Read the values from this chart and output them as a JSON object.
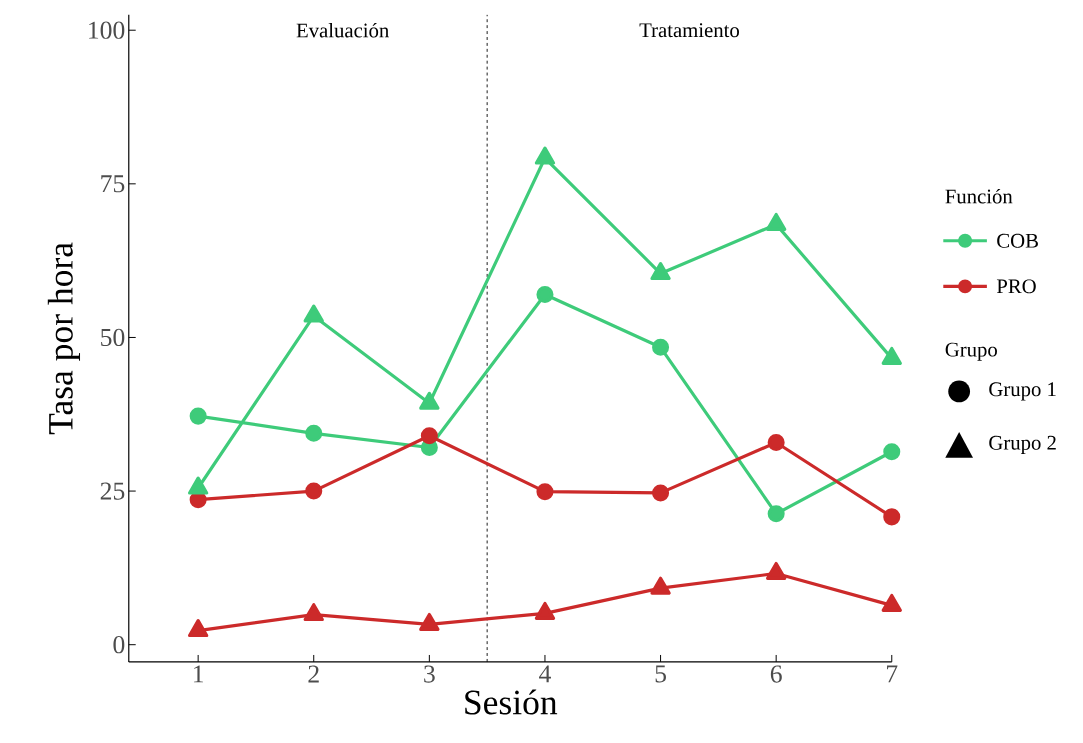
{
  "chart_data": {
    "type": "line",
    "xlabel": "Sesión",
    "ylabel": "Tasa por hora",
    "x": [
      1,
      2,
      3,
      4,
      5,
      6,
      7
    ],
    "xlim": [
      0.4,
      7.0
    ],
    "xticks": [
      1,
      2,
      3,
      4,
      5,
      6,
      7
    ],
    "ylim": [
      -2.8,
      102.5
    ],
    "yticks": [
      0,
      25,
      50,
      75,
      100
    ],
    "grid": false,
    "legend": "right",
    "legend_title": [
      "Función",
      "Grupo"
    ],
    "series": [
      {
        "name": "COB",
        "color": "#3ecb7a",
        "marker": "circle",
        "values": [
          37.2,
          34.4,
          32.1,
          57.0,
          48.4,
          21.3,
          31.4
        ]
      },
      {
        "name": "PRO",
        "color": "#cc2a2a",
        "marker": "circle",
        "values": [
          23.6,
          25.0,
          34.0,
          24.9,
          24.7,
          32.9,
          20.8
        ]
      },
      {
        "color": "#3ecb7a",
        "marker": "triangle",
        "values": [
          25.5,
          53.5,
          39.3,
          79.2,
          60.4,
          68.4,
          46.6
        ]
      },
      {
        "color": "#cc2a2a",
        "marker": "triangle",
        "values": [
          2.3,
          4.9,
          3.3,
          5.1,
          9.2,
          11.6,
          6.4
        ]
      }
    ],
    "ref_lines": [
      {
        "axis": "x",
        "value": 3.5,
        "color": "#000000",
        "line_style": "dashed"
      }
    ],
    "annotations": [
      "Evaluación",
      "Tratamiento",
      "Grupo 1",
      "Grupo 2"
    ]
  }
}
